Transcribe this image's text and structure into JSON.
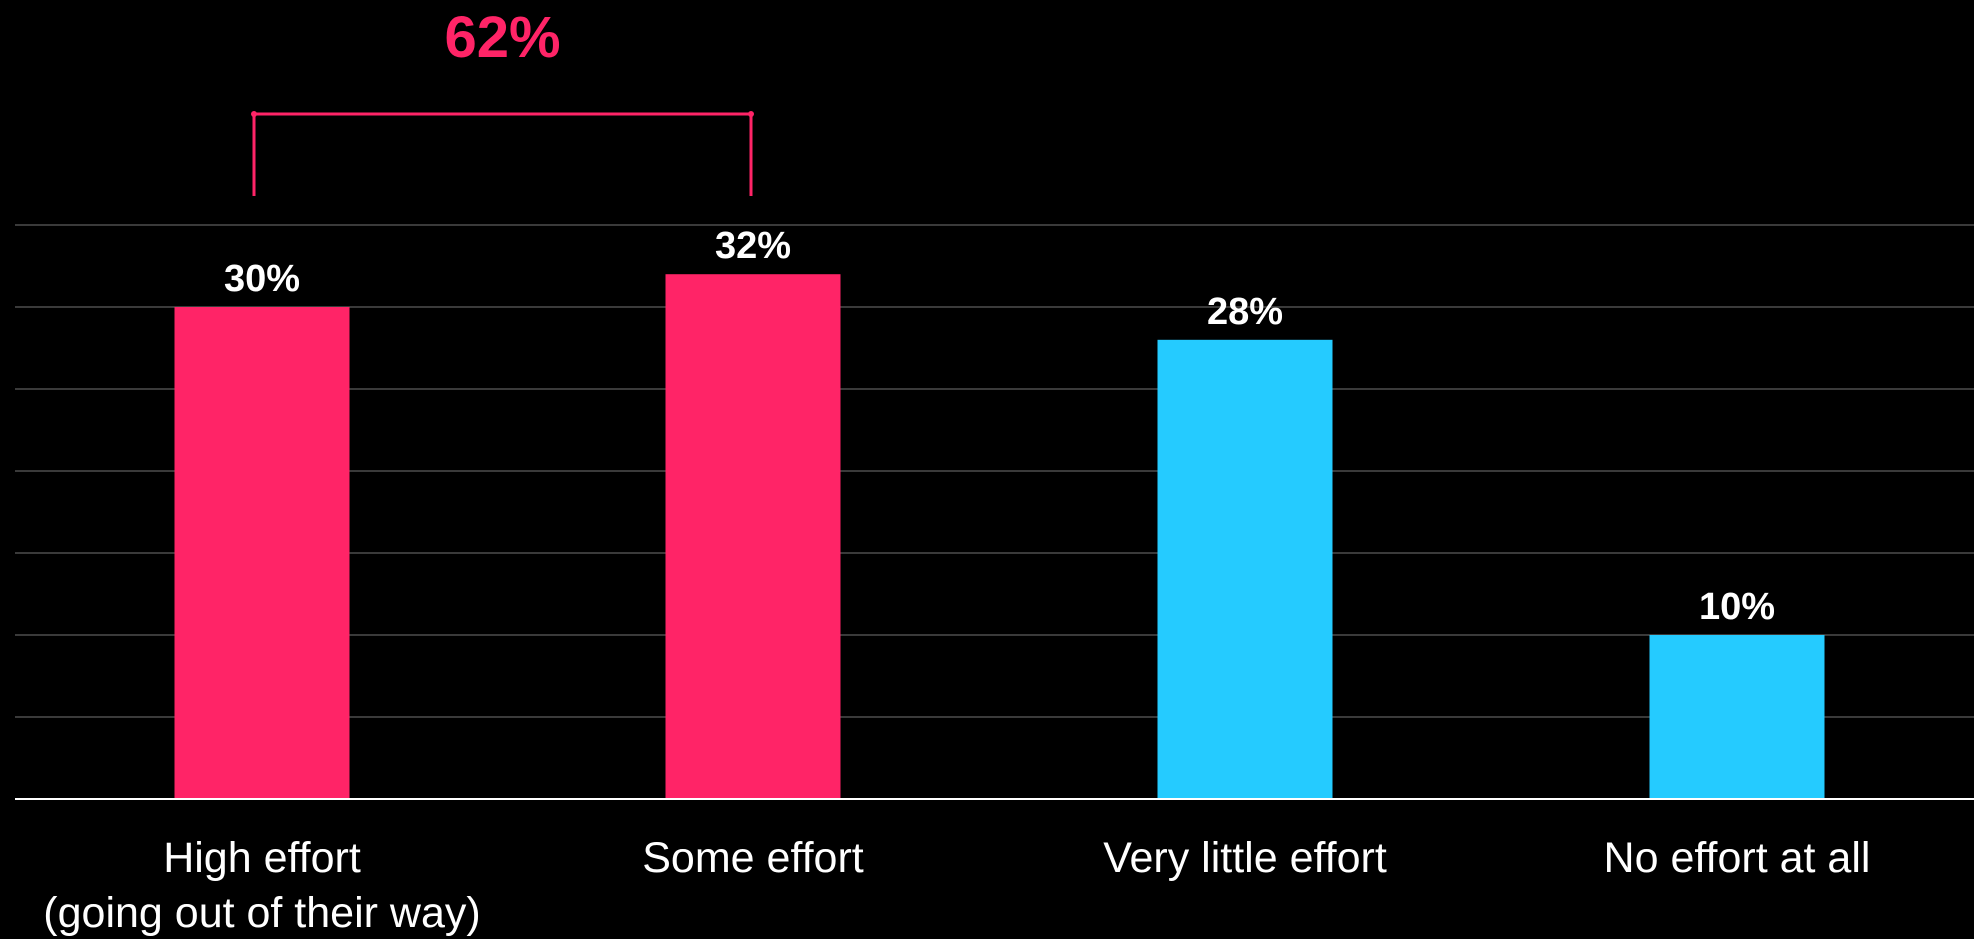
{
  "chart_data": {
    "type": "bar",
    "categories": [
      [
        "High effort",
        "(going out of their way)"
      ],
      [
        "Some effort"
      ],
      [
        "Very little effort"
      ],
      [
        "No effort at all"
      ]
    ],
    "values": [
      30,
      32,
      28,
      10
    ],
    "value_labels": [
      "30%",
      "32%",
      "28%",
      "10%"
    ],
    "bar_colors": [
      "#ff2467",
      "#ff2467",
      "#25cbff",
      "#25cbff"
    ],
    "ylim": [
      0,
      35
    ],
    "y_grid_step": 5,
    "grid": true,
    "title": "",
    "xlabel": "",
    "ylabel": "",
    "annotation": {
      "text": "62%",
      "spans_categories": [
        0,
        1
      ],
      "color": "#ff2467"
    }
  },
  "colors": {
    "background": "#000000",
    "gridline": "#3a3a3a",
    "axis": "#ffffff",
    "text": "#ffffff"
  }
}
